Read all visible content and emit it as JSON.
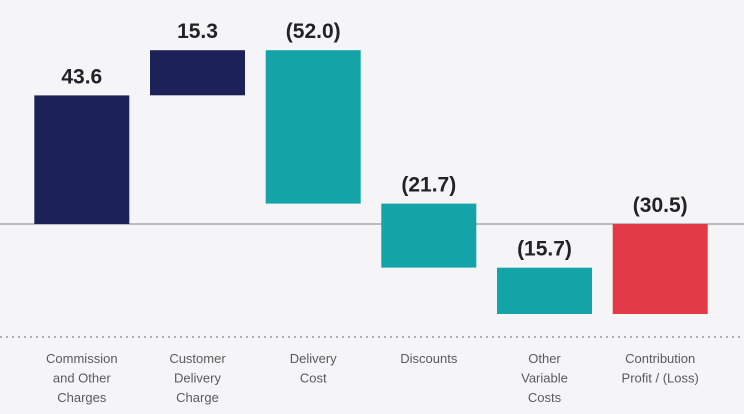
{
  "chart_data": {
    "type": "bar",
    "subtype": "waterfall",
    "title": "",
    "xlabel": "",
    "ylabel": "",
    "categories": [
      [
        "Commission",
        "and Other",
        "Charges"
      ],
      [
        "Customer",
        "Delivery",
        "Charge"
      ],
      [
        "Delivery",
        "Cost"
      ],
      [
        "Discounts"
      ],
      [
        "Other",
        "Variable",
        "Costs"
      ],
      [
        "Contribution",
        "Profit / (Loss)"
      ]
    ],
    "values": [
      43.6,
      15.3,
      -52.0,
      -21.7,
      -15.7,
      -30.5
    ],
    "value_labels": [
      "43.6",
      "15.3",
      "(52.0)",
      "(21.7)",
      "(15.7)",
      "(30.5)"
    ],
    "bar_kinds": [
      "increase",
      "increase",
      "decrease",
      "decrease",
      "decrease",
      "total"
    ],
    "ylim": [
      -32,
      62
    ],
    "grid": false,
    "colors": {
      "increase": "#1c2257",
      "decrease": "#14a4a8",
      "total": "#e23a46",
      "zero_line": "#a9a9a9",
      "dotted_line": "#9a9a9a"
    }
  }
}
